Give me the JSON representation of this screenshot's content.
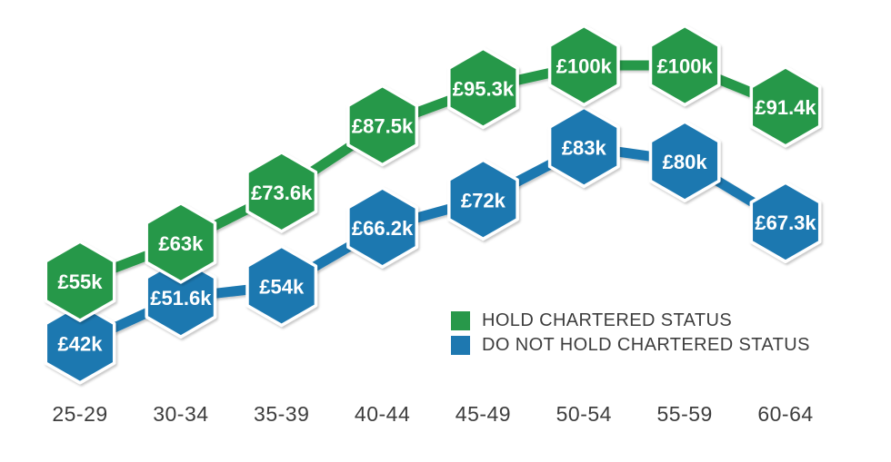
{
  "chart_data": {
    "type": "line",
    "title": "",
    "xlabel": "",
    "ylabel": "",
    "marker_shape": "hexagon",
    "grid": false,
    "y_axis_visible": false,
    "legend_position": "bottom-right",
    "value_unit": "£k",
    "categories": [
      "25-29",
      "30-34",
      "35-39",
      "40-44",
      "45-49",
      "50-54",
      "55-59",
      "60-64"
    ],
    "series": [
      {
        "name": "HOLD CHARTERED STATUS",
        "color": "#28984A",
        "values": [
          55,
          63,
          73.6,
          87.5,
          95.3,
          100,
          100,
          91.4
        ],
        "labels": [
          "£55k",
          "£63k",
          "£73.6k",
          "£87.5k",
          "£95.3k",
          "£100k",
          "£100k",
          "£91.4k"
        ]
      },
      {
        "name": "DO NOT HOLD CHARTERED STATUS",
        "color": "#1E78B0",
        "values": [
          42,
          51.6,
          54,
          66.2,
          72,
          83,
          80,
          67.3
        ],
        "labels": [
          "£42k",
          "£51.6k",
          "£54k",
          "£66.2k",
          "£72k",
          "£83k",
          "£80k",
          "£67.3k"
        ]
      }
    ]
  },
  "legend": {
    "items": [
      {
        "label": "HOLD CHARTERED STATUS",
        "color": "#28984A"
      },
      {
        "label": "DO NOT HOLD CHARTERED STATUS",
        "color": "#1E78B0"
      }
    ]
  },
  "colors": {
    "background": "#ffffff",
    "axis_text": "#3d3d3d",
    "marker_text": "#ffffff"
  }
}
